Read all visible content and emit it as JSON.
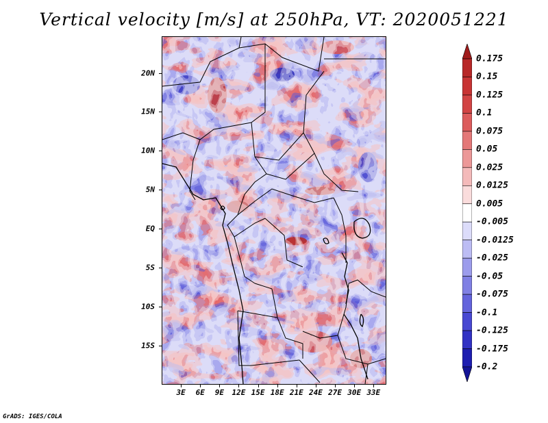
{
  "title": "Vertical velocity [m/s] at 250hPa, VT: 2020051221",
  "map": {
    "region": "Central Africa",
    "variable": "vertical velocity",
    "units": "m/s",
    "level": "250hPa",
    "valid_time": "2020051221",
    "lat_labels": [
      "20N",
      "15N",
      "10N",
      "5N",
      "EQ",
      "5S",
      "10S",
      "15S"
    ],
    "lat_values": [
      20,
      15,
      10,
      5,
      0,
      -5,
      -10,
      -15
    ],
    "lon_labels": [
      "3E",
      "6E",
      "9E",
      "12E",
      "15E",
      "18E",
      "21E",
      "24E",
      "27E",
      "30E",
      "33E"
    ],
    "lon_values": [
      3,
      6,
      9,
      12,
      15,
      18,
      21,
      24,
      27,
      30,
      33
    ],
    "lon_range": [
      0,
      35
    ],
    "lat_range": [
      -20,
      24.7
    ]
  },
  "colorbar": {
    "labels": [
      "0.175",
      "0.15",
      "0.125",
      "0.1",
      "0.075",
      "0.05",
      "0.025",
      "0.0125",
      "0.005",
      "-0.005",
      "-0.0125",
      "-0.025",
      "-0.05",
      "-0.075",
      "-0.1",
      "-0.125",
      "-0.175",
      "-0.2"
    ],
    "colors": [
      "#a01c1c",
      "#b82828",
      "#c83434",
      "#d24444",
      "#dc5c5c",
      "#e47878",
      "#ec9898",
      "#f4baba",
      "#fadcdc",
      "#ffffff",
      "#dcdcfa",
      "#bcbcf4",
      "#9c9cec",
      "#8080e4",
      "#6464dc",
      "#4848d2",
      "#3232c4",
      "#1e1eb0",
      "#141496"
    ]
  },
  "footer": "GrADS: IGES/COLA"
}
